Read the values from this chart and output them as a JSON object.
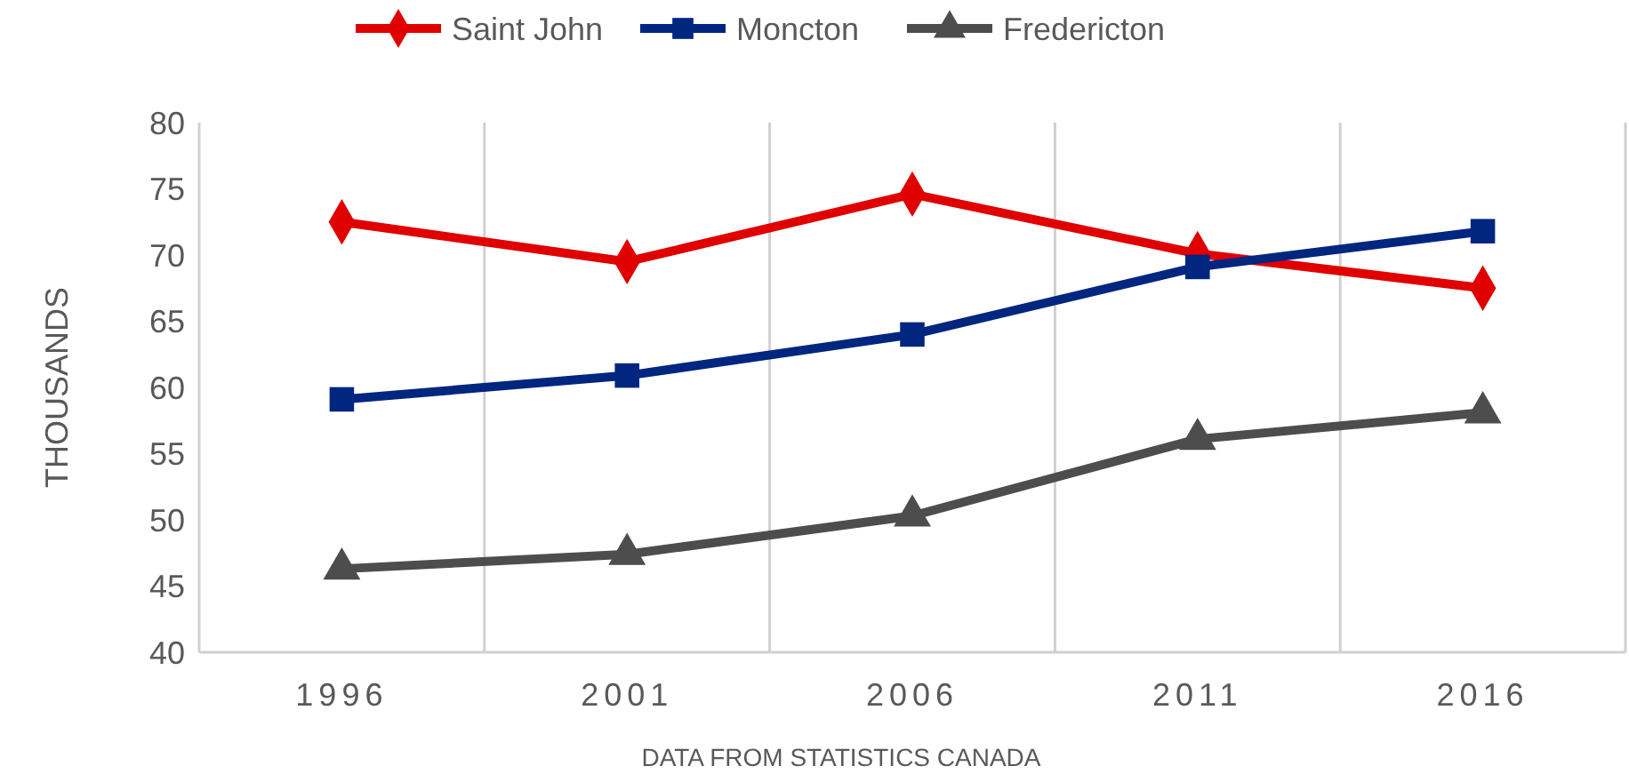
{
  "chart_data": {
    "type": "line",
    "categories": [
      "1996",
      "2001",
      "2006",
      "2011",
      "2016"
    ],
    "ylabel": "THOUSANDS",
    "annotations": [
      "DATA FROM STATISTICS CANADA"
    ],
    "ylim": [
      40,
      80
    ],
    "yticks": [
      40,
      45,
      50,
      55,
      60,
      65,
      70,
      75,
      80
    ],
    "grid": "x",
    "legend": "top",
    "series": [
      {
        "name": "Saint John",
        "color": "#e00000",
        "marker": "diamond",
        "values": [
          72.5,
          69.5,
          74.6,
          70.1,
          67.5
        ]
      },
      {
        "name": "Moncton",
        "color": "#002680",
        "marker": "square",
        "values": [
          59.1,
          60.9,
          64.0,
          69.1,
          71.8
        ]
      },
      {
        "name": "Fredericton",
        "color": "#4d4d4d",
        "marker": "triangle",
        "values": [
          46.3,
          47.4,
          50.3,
          56.1,
          58.1
        ]
      }
    ]
  }
}
